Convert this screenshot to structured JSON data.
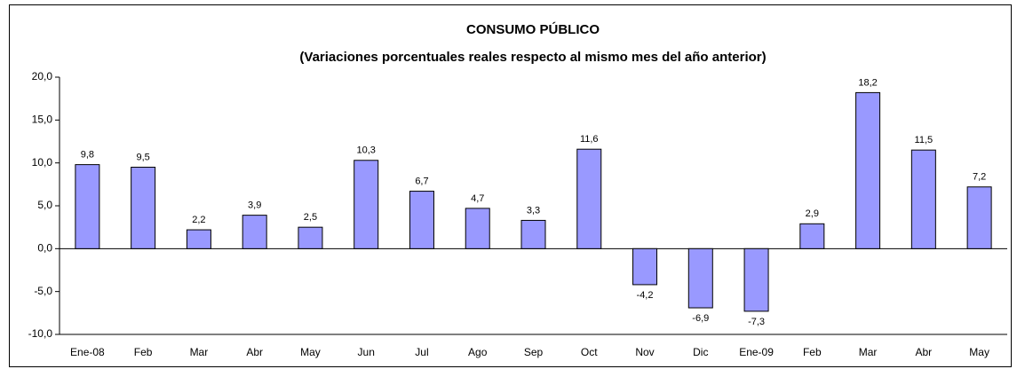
{
  "chart_data": {
    "type": "bar",
    "title": "CONSUMO PÚBLICO",
    "subtitle": "(Variaciones porcentuales reales respecto al mismo mes del año anterior)",
    "categories": [
      "Ene-08",
      "Feb",
      "Mar",
      "Abr",
      "May",
      "Jun",
      "Jul",
      "Ago",
      "Sep",
      "Oct",
      "Nov",
      "Dic",
      "Ene-09",
      "Feb",
      "Mar",
      "Abr",
      "May"
    ],
    "values": [
      9.8,
      9.5,
      2.2,
      3.9,
      2.5,
      10.3,
      6.7,
      4.7,
      3.3,
      11.6,
      -4.2,
      -6.9,
      -7.3,
      2.9,
      18.2,
      11.5,
      7.2
    ],
    "value_labels": [
      "9,8",
      "9,5",
      "2,2",
      "3,9",
      "2,5",
      "10,3",
      "6,7",
      "4,7",
      "3,3",
      "11,6",
      "-4,2",
      "-6,9",
      "-7,3",
      "2,9",
      "18,2",
      "11,5",
      "7,2"
    ],
    "color": "#9999ff",
    "ylim": [
      -10,
      20
    ],
    "yticks": [
      {
        "value": -10,
        "label": "-10,0"
      },
      {
        "value": -5,
        "label": "-5,0"
      },
      {
        "value": 0,
        "label": "0,0"
      },
      {
        "value": 5,
        "label": "5,0"
      },
      {
        "value": 10,
        "label": "10,0"
      },
      {
        "value": 15,
        "label": "15,0"
      },
      {
        "value": 20,
        "label": "20,0"
      }
    ],
    "grid": false
  }
}
